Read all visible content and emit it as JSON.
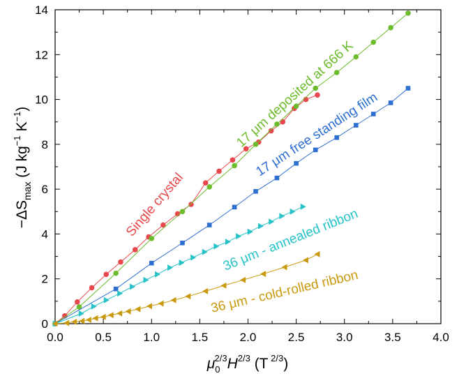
{
  "chart_data": {
    "type": "line",
    "xlabel": "μ0^2/3 H^2/3 (T^2/3)",
    "ylabel": "−ΔSmax (J kg−1 K−1)",
    "xlim": [
      0.0,
      4.0
    ],
    "ylim": [
      0,
      14
    ],
    "x_ticks": [
      "0.0",
      "0.5",
      "1.0",
      "1.5",
      "2.0",
      "2.5",
      "3.0",
      "3.5",
      "4.0"
    ],
    "y_ticks": [
      "0",
      "2",
      "4",
      "6",
      "8",
      "10",
      "12",
      "14"
    ],
    "grid": false,
    "legend": "none (series labeled inline)",
    "series": [
      {
        "name": "Single crystal",
        "marker": "circle",
        "color": "#e8474b",
        "x": [
          0.0,
          0.1,
          0.23,
          0.38,
          0.53,
          0.68,
          0.83,
          0.97,
          1.12,
          1.27,
          1.41,
          1.56,
          1.7,
          1.84,
          1.98,
          2.11,
          2.24,
          2.36,
          2.48,
          2.6,
          2.72
        ],
        "y": [
          0.0,
          0.35,
          0.97,
          1.6,
          2.2,
          2.75,
          3.3,
          3.87,
          4.4,
          4.9,
          5.32,
          6.28,
          6.8,
          7.3,
          7.8,
          8.1,
          8.6,
          9.0,
          9.6,
          10.0,
          10.2
        ]
      },
      {
        "name": "17 μm deposited at 666 K",
        "marker": "circle",
        "color": "#6cbb2c",
        "x": [
          0.0,
          0.25,
          0.63,
          1.0,
          1.32,
          1.6,
          1.86,
          2.08,
          2.3,
          2.5,
          2.7,
          2.92,
          3.12,
          3.3,
          3.48,
          3.66
        ],
        "y": [
          0.0,
          0.75,
          2.25,
          3.8,
          5.0,
          6.1,
          7.05,
          8.0,
          8.9,
          9.7,
          10.5,
          11.2,
          11.9,
          12.55,
          13.2,
          13.85
        ]
      },
      {
        "name": "17 μm free standing film",
        "marker": "square",
        "color": "#2d6fd0",
        "x": [
          0.0,
          0.63,
          1.0,
          1.32,
          1.6,
          1.86,
          2.08,
          2.3,
          2.5,
          2.7,
          2.92,
          3.12,
          3.3,
          3.48,
          3.66
        ],
        "y": [
          0.0,
          1.55,
          2.7,
          3.6,
          4.4,
          5.2,
          5.9,
          6.5,
          7.15,
          7.75,
          8.3,
          8.85,
          9.35,
          9.85,
          10.5
        ]
      },
      {
        "name": "36 μm - annealed ribbon",
        "marker": "triangle-right",
        "color": "#27c2c8",
        "x": [
          0.0,
          0.27,
          0.4,
          0.53,
          0.67,
          0.8,
          0.94,
          1.06,
          1.19,
          1.31,
          1.43,
          1.55,
          1.67,
          1.79,
          1.9,
          2.02,
          2.13,
          2.24,
          2.35,
          2.46,
          2.57
        ],
        "y": [
          0.0,
          0.45,
          0.77,
          1.05,
          1.35,
          1.65,
          1.95,
          2.2,
          2.5,
          2.72,
          2.95,
          3.2,
          3.45,
          3.65,
          3.9,
          4.1,
          4.35,
          4.55,
          4.8,
          5.0,
          5.22
        ]
      },
      {
        "name": "36 μm - cold-rolled ribbon",
        "marker": "triangle-left",
        "color": "#c99a0f",
        "x": [
          0.0,
          0.12,
          0.2,
          0.28,
          0.35,
          0.42,
          0.5,
          0.58,
          0.67,
          0.76,
          0.86,
          0.98,
          1.1,
          1.23,
          1.38,
          1.56,
          1.75,
          1.95,
          2.16,
          2.38,
          2.6,
          2.72
        ],
        "y": [
          0.0,
          0.03,
          0.08,
          0.12,
          0.17,
          0.24,
          0.3,
          0.38,
          0.46,
          0.55,
          0.65,
          0.78,
          0.9,
          1.05,
          1.22,
          1.45,
          1.7,
          1.95,
          2.22,
          2.52,
          2.83,
          3.1
        ]
      }
    ]
  },
  "labels": {
    "single_crystal": "Single crystal",
    "deposited": "17 μm deposited at 666 K",
    "free_standing": "17 μm free standing film",
    "annealed": "36 μm - annealed ribbon",
    "cold_rolled": "36 μm - cold-rolled ribbon"
  }
}
